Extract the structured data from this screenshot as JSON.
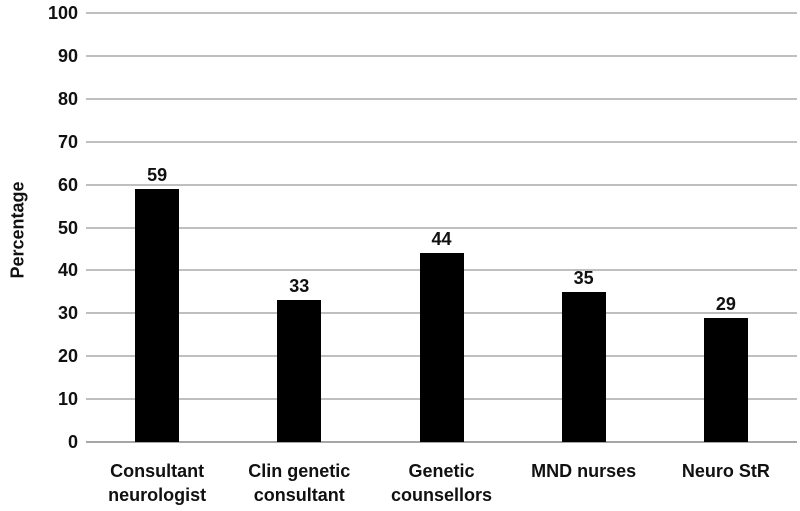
{
  "chart_data": {
    "type": "bar",
    "title": "",
    "xlabel": "",
    "ylabel": "Percentage",
    "categories": [
      "Consultant neurologist",
      "Clin genetic consultant",
      "Genetic counsellors",
      "MND nurses",
      "Neuro StR"
    ],
    "values": [
      59,
      33,
      44,
      35,
      29
    ],
    "value_labels": [
      "59",
      "33",
      "44",
      "35",
      "29"
    ],
    "ylim": [
      0,
      100
    ],
    "yticks": [
      0,
      10,
      20,
      30,
      40,
      50,
      60,
      70,
      80,
      90,
      100
    ],
    "grid": true,
    "legend_position": "none",
    "colors": {
      "bar": "#000000",
      "gridline": "#BFBFBF",
      "axis_line": "#A6A6A6",
      "text": "#111111",
      "background": "#FFFFFF"
    }
  }
}
